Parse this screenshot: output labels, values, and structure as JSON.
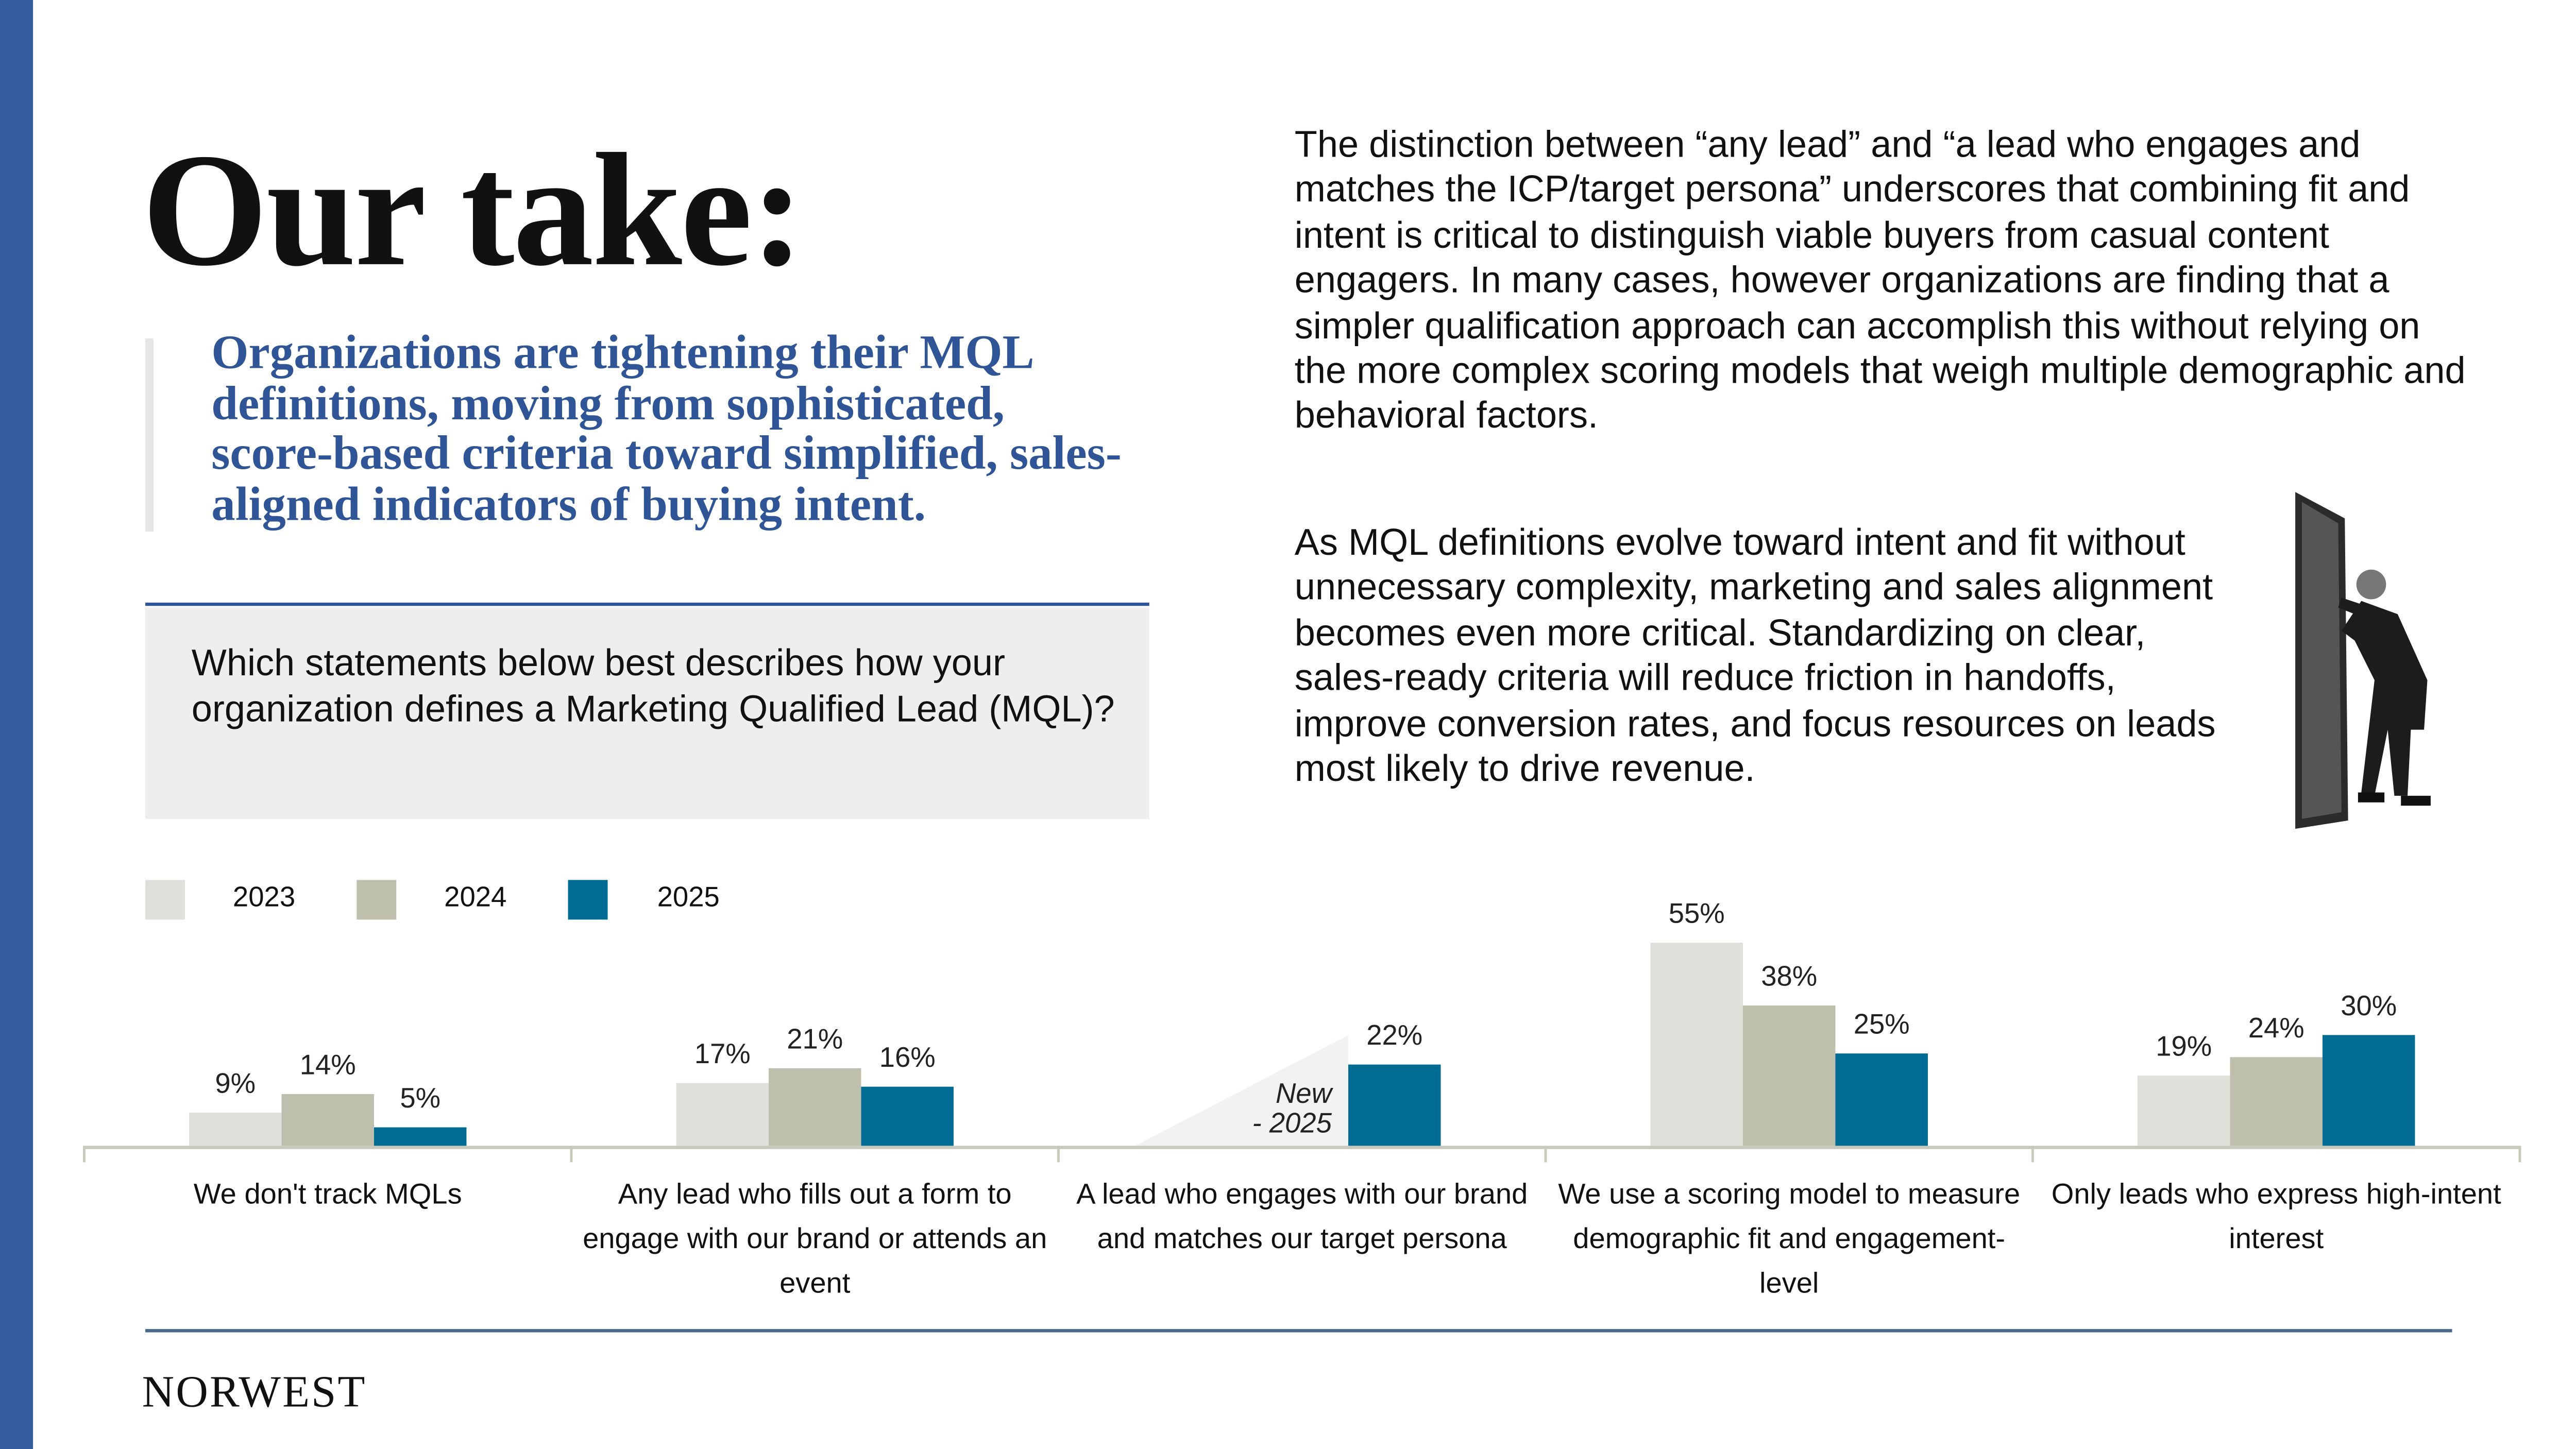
{
  "title": "Our take:",
  "quote": "Organizations are tightening their MQL definitions, moving from sophisticated, score-based criteria toward simplified, sales-aligned indicators of buying intent.",
  "question": "Which statements below best describes how your organization defines a Marketing Qualified Lead (MQL)?",
  "body_paragraphs": [
    "The distinction between “any lead” and “a lead who engages and matches the ICP/target persona” underscores that combining fit and intent is critical to distinguish viable buyers from casual content engagers. In many cases, however organizations are finding that a simpler qualification approach can accomplish this without relying on the more complex scoring models that weigh multiple demographic and behavioral factors.",
    "As MQL definitions evolve toward intent and fit without unnecessary complexity, marketing and sales alignment becomes even more critical. Standardizing on clear, sales-ready criteria will reduce friction in handoffs, improve conversion rates, and focus resources on leads most likely to drive revenue."
  ],
  "image": "man-pushing-door-illustration",
  "footer": {
    "logo": "NORWEST"
  },
  "colors": {
    "accent": "#345b9b",
    "quote": "#2f5597",
    "s2023": "#e0e0da",
    "s2024": "#bfbfae",
    "s2025": "#006c94"
  },
  "chart_data": {
    "type": "bar",
    "categories": [
      "We don't track MQLs",
      "Any lead who fills out a form to engage with our brand or attends an event",
      "A lead who engages with our brand and matches our target persona",
      "We use a scoring model to measure demographic fit and engagement-level",
      "Only leads who express high-intent interest"
    ],
    "series": [
      {
        "name": "2023",
        "values": [
          9,
          17,
          null,
          55,
          19
        ],
        "color": "#e0e0da"
      },
      {
        "name": "2024",
        "values": [
          14,
          21,
          null,
          38,
          24
        ],
        "color": "#bfbfae"
      },
      {
        "name": "2025",
        "values": [
          5,
          16,
          22,
          25,
          30
        ],
        "color": "#006c94"
      }
    ],
    "data_labels": [
      [
        "9%",
        "17%",
        null,
        "55%",
        "19%"
      ],
      [
        "14%",
        "21%",
        null,
        "38%",
        "24%"
      ],
      [
        "5%",
        "16%",
        "22%",
        "25%",
        "30%"
      ]
    ],
    "annotation": {
      "category_index": 2,
      "text_line1": "New",
      "text_line2": "- 2025"
    },
    "legend_position": "top-left",
    "grid": false,
    "ylim": [
      0,
      55
    ]
  }
}
